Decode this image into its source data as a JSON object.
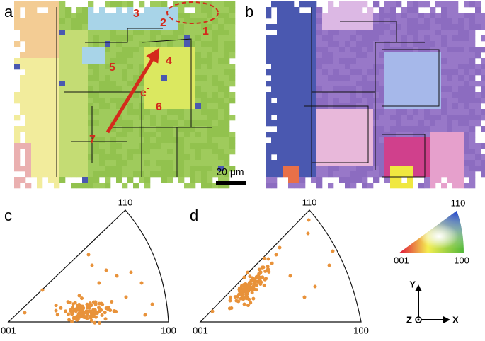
{
  "panels": {
    "a": {
      "label": "a",
      "grain_labels": [
        "1",
        "2",
        "3",
        "4",
        "5",
        "6",
        "7"
      ],
      "electron": "e",
      "electron_charge": "-",
      "scale_bar": "20 μm"
    },
    "b": {
      "label": "b"
    },
    "c": {
      "label": "c",
      "apex": "110",
      "left": "001",
      "right": "100"
    },
    "d": {
      "label": "d",
      "apex": "110",
      "left": "001",
      "right": "100"
    },
    "legend": {
      "apex": "110",
      "left": "001",
      "right": "100"
    },
    "axes": {
      "y": "Y",
      "z": "Z",
      "x": "X"
    }
  }
}
